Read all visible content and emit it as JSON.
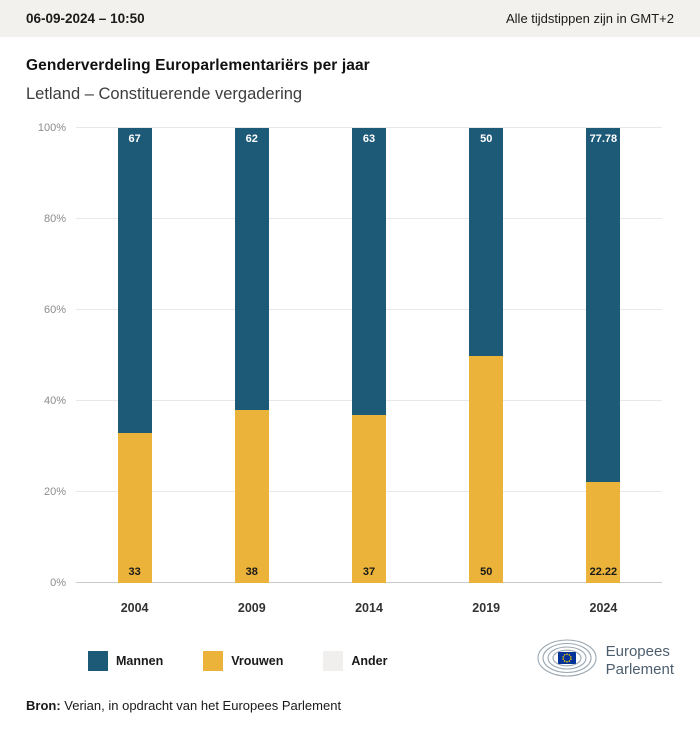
{
  "topbar": {
    "datetime": "06-09-2024 – 10:50",
    "timezone_note": "Alle tijdstippen zijn in GMT+2"
  },
  "header": {
    "title": "Genderverdeling Europarlementariërs per jaar",
    "subtitle": "Letland – Constituerende vergadering"
  },
  "chart_data": {
    "type": "bar",
    "stacked": true,
    "title": "Genderverdeling Europarlementariërs per jaar",
    "subtitle": "Letland – Constituerende vergadering",
    "categories": [
      "2004",
      "2009",
      "2014",
      "2019",
      "2024"
    ],
    "series": [
      {
        "name": "Mannen",
        "color": "#1d5a78",
        "values": [
          67,
          62,
          63,
          50,
          77.78
        ],
        "labels": [
          "67",
          "62",
          "63",
          "50",
          "77.78"
        ]
      },
      {
        "name": "Vrouwen",
        "color": "#ebb339",
        "values": [
          33,
          38,
          37,
          50,
          22.22
        ],
        "labels": [
          "33",
          "38",
          "37",
          "50",
          "22.22"
        ]
      },
      {
        "name": "Ander",
        "color": "#f0efed",
        "values": [
          0,
          0,
          0,
          0,
          0
        ],
        "labels": [
          "",
          "",
          "",
          "",
          ""
        ]
      }
    ],
    "ylim": [
      0,
      100
    ],
    "yticks": [
      "0%",
      "20%",
      "40%",
      "60%",
      "80%",
      "100%"
    ],
    "grid": true,
    "legend_position": "bottom"
  },
  "legend": [
    {
      "label": "Mannen",
      "color": "#1d5a78"
    },
    {
      "label": "Vrouwen",
      "color": "#ebb339"
    },
    {
      "label": "Ander",
      "color": "#f0efed"
    }
  ],
  "footer": {
    "source_label": "Bron:",
    "source_text": " Verian, in opdracht van het Europees Parlement"
  },
  "logo": {
    "line1": "Europees",
    "line2": "Parlement"
  }
}
